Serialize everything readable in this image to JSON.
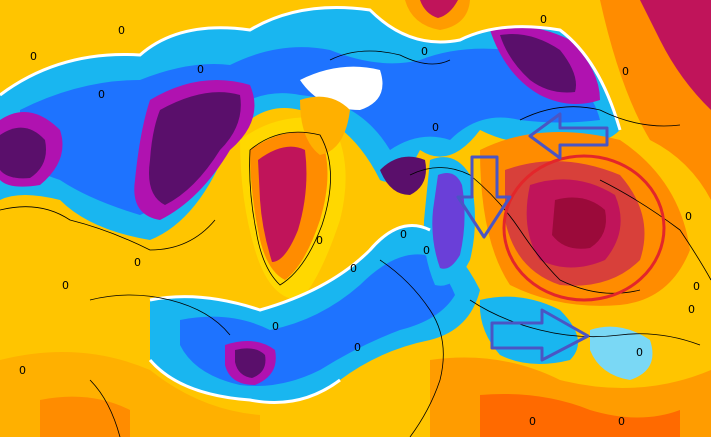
{
  "map": {
    "contour_label": "0",
    "colors": {
      "deep_cold": "#5a0f6b",
      "cold_magenta": "#b012b0",
      "cold_violet": "#6a3fd8",
      "cold_blue": "#1e73ff",
      "cold_cyan": "#19b6f0",
      "light_cyan": "#7ad8f5",
      "neutral_white": "#ffffff",
      "warm_yellow": "#ffd800",
      "warm_orange": "#ff9c00",
      "warm_dark_orange": "#ff6a00",
      "hot_red": "#d8403a",
      "hot_crimson": "#c0145a",
      "hot_maroon": "#9b0a3a",
      "circle": "#e3262a",
      "arrow_outline": "#4a55c4"
    },
    "annotations": {
      "circle": "highlight-circle",
      "arrows": [
        "arrow-left",
        "arrow-down",
        "arrow-right"
      ]
    }
  }
}
